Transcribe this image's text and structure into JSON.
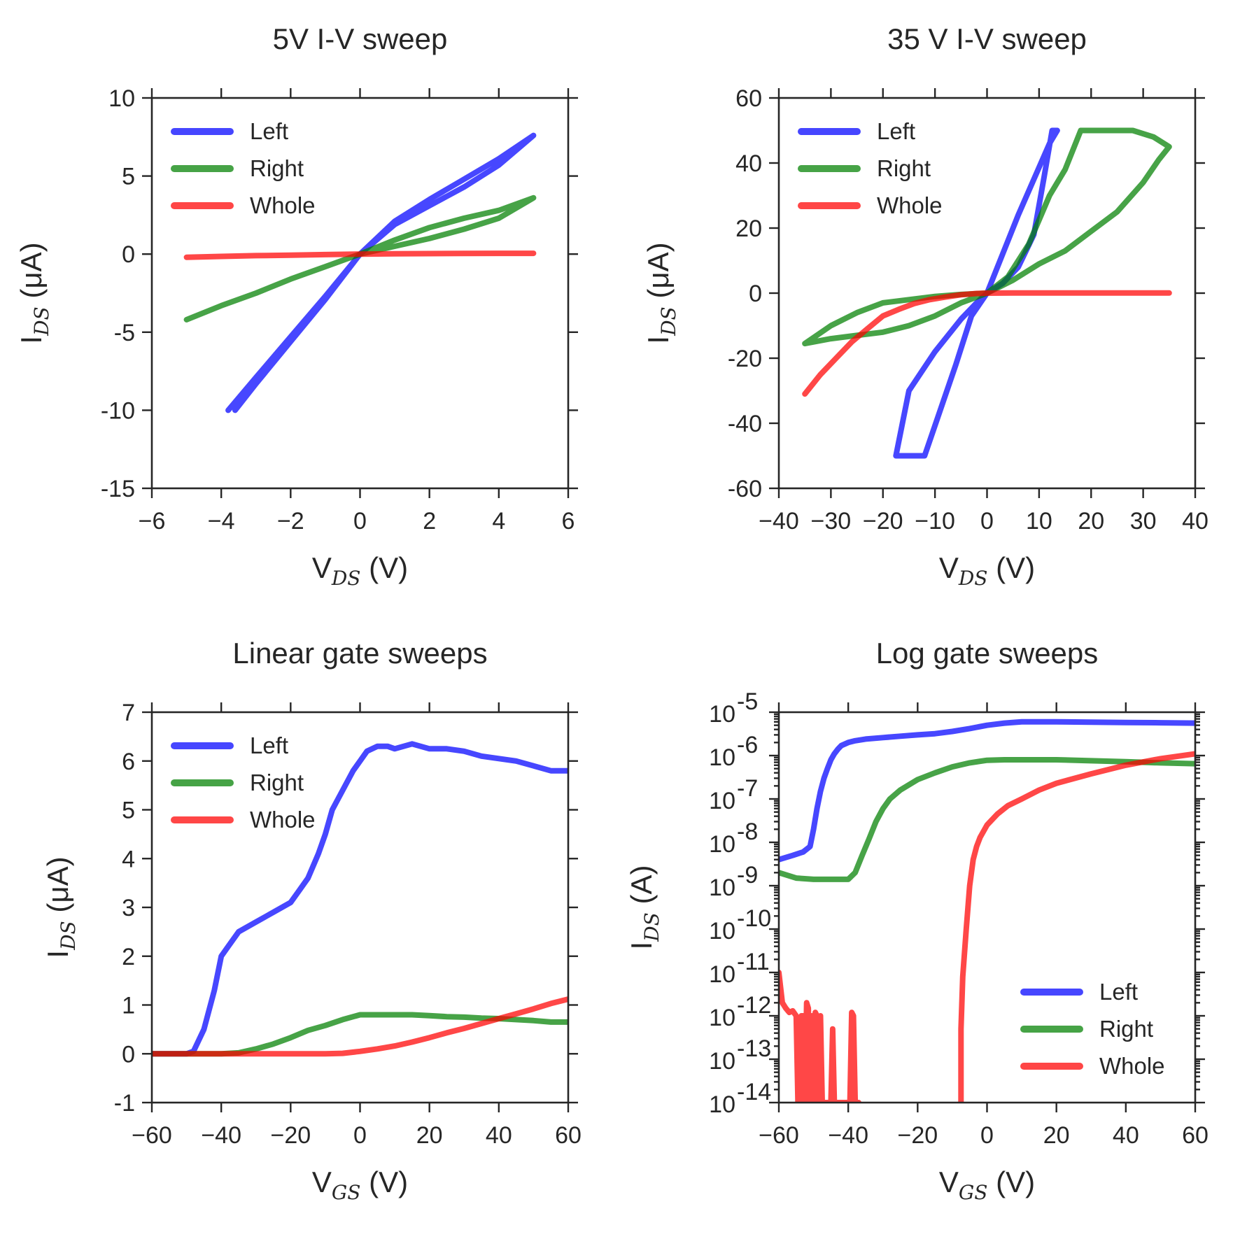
{
  "figure": {
    "legend_labels": [
      "Left",
      "Right",
      "Whole"
    ],
    "colors": {
      "Left": "#0000ff",
      "Right": "#008000",
      "Whole": "#ff0000"
    }
  },
  "chart_data": [
    {
      "id": "p1",
      "type": "line",
      "title": "5V I-V sweep",
      "xlabel": "V",
      "xlabel_sub": "DS",
      "xlabel_suffix": " (V)",
      "ylabel": "I",
      "ylabel_sub": "DS",
      "ylabel_suffix": " (μA)",
      "xlim": [
        -6,
        6
      ],
      "ylim": [
        -15,
        10
      ],
      "xticks": [
        -6,
        -4,
        -2,
        0,
        2,
        4,
        6
      ],
      "xtick_labels": [
        "−6",
        "−4",
        "−2",
        "0",
        "2",
        "4",
        "6"
      ],
      "yticks": [
        -15,
        -10,
        -5,
        0,
        5,
        10
      ],
      "ytick_labels": [
        "-15",
        "-10",
        "-5",
        "0",
        "5",
        "10"
      ],
      "legend_position": "top-left",
      "series": [
        {
          "name": "Left",
          "x": [
            -3.8,
            -3.0,
            -2.0,
            -1.0,
            0.0,
            1.0,
            2.0,
            3.0,
            4.0,
            5.0,
            4.0,
            3.0,
            2.0,
            1.0,
            0.0,
            -1.0,
            -2.0,
            -3.0,
            -3.6
          ],
          "y": [
            -10.0,
            -7.9,
            -5.3,
            -2.7,
            0.0,
            1.9,
            3.1,
            4.3,
            5.7,
            7.6,
            6.1,
            4.8,
            3.5,
            2.1,
            0.0,
            -2.9,
            -5.6,
            -8.3,
            -10.0
          ]
        },
        {
          "name": "Right",
          "x": [
            -5.0,
            -4.0,
            -3.0,
            -2.0,
            -1.0,
            0.0,
            1.0,
            2.0,
            3.0,
            4.0,
            5.0,
            4.0,
            3.0,
            2.0,
            1.0,
            0.0,
            -1.0,
            -2.0,
            -3.0,
            -4.0,
            -5.0
          ],
          "y": [
            -4.2,
            -3.3,
            -2.5,
            -1.6,
            -0.8,
            0.0,
            0.9,
            1.7,
            2.3,
            2.8,
            3.6,
            2.3,
            1.6,
            1.0,
            0.5,
            0.0,
            -0.8,
            -1.6,
            -2.5,
            -3.3,
            -4.2
          ]
        },
        {
          "name": "Whole",
          "x": [
            -5.0,
            -4.0,
            -3.0,
            -2.0,
            -1.0,
            0.0,
            1.0,
            2.0,
            3.0,
            4.0,
            5.0
          ],
          "y": [
            -0.2,
            -0.15,
            -0.1,
            -0.07,
            -0.03,
            0.0,
            0.02,
            0.03,
            0.04,
            0.05,
            0.05
          ]
        }
      ]
    },
    {
      "id": "p2",
      "type": "line",
      "title": "35 V I-V sweep",
      "xlabel": "V",
      "xlabel_sub": "DS",
      "xlabel_suffix": " (V)",
      "ylabel": "I",
      "ylabel_sub": "DS",
      "ylabel_suffix": " (μA)",
      "xlim": [
        -40,
        40
      ],
      "ylim": [
        -60,
        60
      ],
      "xticks": [
        -40,
        -30,
        -20,
        -10,
        0,
        10,
        20,
        30,
        40
      ],
      "xtick_labels": [
        "−40",
        "−30",
        "−20",
        "−10",
        "0",
        "10",
        "20",
        "30",
        "40"
      ],
      "yticks": [
        -60,
        -40,
        -20,
        0,
        20,
        40,
        60
      ],
      "ytick_labels": [
        "-60",
        "-40",
        "-20",
        "0",
        "20",
        "40",
        "60"
      ],
      "legend_position": "top-left",
      "series": [
        {
          "name": "Left",
          "x": [
            0,
            3,
            6,
            9,
            12,
            13.5,
            12.5,
            11,
            9,
            6,
            3,
            0,
            -3,
            -6,
            -9,
            -12,
            -12,
            -17.5,
            -15,
            -10,
            -5,
            -2,
            0
          ],
          "y": [
            0,
            12,
            24,
            35,
            46,
            50,
            50,
            36,
            18,
            8,
            3,
            0,
            -7,
            -22,
            -36,
            -50,
            -50,
            -50,
            -30,
            -18,
            -8,
            -3,
            0
          ]
        },
        {
          "name": "Right",
          "x": [
            0,
            4,
            8,
            12,
            15,
            18,
            22,
            28,
            32,
            35,
            33,
            30,
            25,
            20,
            15,
            10,
            5,
            0,
            -5,
            -10,
            -15,
            -20,
            -25,
            -30,
            -35,
            -30,
            -25,
            -20,
            -15,
            -10,
            -5,
            0
          ],
          "y": [
            0,
            5,
            15,
            30,
            38,
            50,
            50,
            50,
            48,
            45,
            41,
            34,
            25,
            19,
            13,
            9,
            4,
            0,
            -3,
            -7,
            -10,
            -12,
            -13,
            -14,
            -15.5,
            -10,
            -6,
            -3,
            -2,
            -1,
            -0.4,
            0
          ]
        },
        {
          "name": "Whole",
          "x": [
            -35,
            -32,
            -29,
            -26,
            -23,
            -20,
            -17,
            -14,
            -11,
            -8,
            -5,
            -2,
            0,
            5,
            10,
            20,
            30,
            35
          ],
          "y": [
            -31,
            -25,
            -20,
            -15,
            -11,
            -7,
            -5,
            -3.2,
            -2,
            -1.2,
            -0.5,
            -0.1,
            0,
            0.05,
            0.05,
            0.05,
            0.05,
            0.05
          ]
        }
      ]
    },
    {
      "id": "p3",
      "type": "line",
      "title": "Linear gate sweeps",
      "xlabel": "V",
      "xlabel_sub": "GS",
      "xlabel_suffix": " (V)",
      "ylabel": "I",
      "ylabel_sub": "DS",
      "ylabel_suffix": " (μA)",
      "xlim": [
        -60,
        60
      ],
      "ylim": [
        -1,
        7
      ],
      "xticks": [
        -60,
        -40,
        -20,
        0,
        20,
        40,
        60
      ],
      "xtick_labels": [
        "−60",
        "−40",
        "−20",
        "0",
        "20",
        "40",
        "60"
      ],
      "yticks": [
        -1,
        0,
        1,
        2,
        3,
        4,
        5,
        6,
        7
      ],
      "ytick_labels": [
        "-1",
        "0",
        "1",
        "2",
        "3",
        "4",
        "5",
        "6",
        "7"
      ],
      "legend_position": "top-left",
      "series": [
        {
          "name": "Left",
          "x": [
            -60,
            -50,
            -48,
            -45,
            -42,
            -40,
            -38,
            -35,
            -30,
            -25,
            -20,
            -18,
            -15,
            -12,
            -10,
            -8,
            -5,
            -2,
            0,
            2,
            5,
            8,
            10,
            15,
            20,
            25,
            30,
            35,
            40,
            45,
            50,
            55,
            58,
            60
          ],
          "y": [
            0,
            0,
            0.05,
            0.5,
            1.3,
            2.0,
            2.2,
            2.5,
            2.7,
            2.9,
            3.1,
            3.3,
            3.6,
            4.1,
            4.5,
            5.0,
            5.4,
            5.8,
            6.0,
            6.2,
            6.3,
            6.3,
            6.25,
            6.35,
            6.25,
            6.25,
            6.2,
            6.1,
            6.05,
            6.0,
            5.9,
            5.8,
            5.8,
            5.8
          ]
        },
        {
          "name": "Right",
          "x": [
            -60,
            -40,
            -35,
            -30,
            -25,
            -20,
            -15,
            -10,
            -5,
            0,
            5,
            10,
            15,
            20,
            25,
            30,
            35,
            40,
            45,
            50,
            55,
            60
          ],
          "y": [
            0,
            0,
            0.02,
            0.1,
            0.2,
            0.33,
            0.48,
            0.58,
            0.7,
            0.8,
            0.8,
            0.8,
            0.8,
            0.78,
            0.76,
            0.75,
            0.73,
            0.72,
            0.7,
            0.68,
            0.65,
            0.65
          ]
        },
        {
          "name": "Whole",
          "x": [
            -60,
            -40,
            -20,
            -10,
            -5,
            0,
            5,
            10,
            15,
            20,
            25,
            30,
            35,
            40,
            45,
            50,
            55,
            60
          ],
          "y": [
            0,
            0,
            0,
            0,
            0.01,
            0.05,
            0.1,
            0.16,
            0.24,
            0.33,
            0.43,
            0.52,
            0.62,
            0.72,
            0.82,
            0.92,
            1.03,
            1.12
          ]
        }
      ]
    },
    {
      "id": "p4",
      "type": "line",
      "title": "Log gate sweeps",
      "xlabel": "V",
      "xlabel_sub": "GS",
      "xlabel_suffix": " (V)",
      "ylabel": "I",
      "ylabel_sub": "DS",
      "ylabel_suffix": " (A)",
      "yscale": "log",
      "xlim": [
        -60,
        60
      ],
      "ylim": [
        1e-14,
        1e-05
      ],
      "xticks": [
        -60,
        -40,
        -20,
        0,
        20,
        40,
        60
      ],
      "xtick_labels": [
        "−60",
        "−40",
        "−20",
        "0",
        "20",
        "40",
        "60"
      ],
      "yticks_exp": [
        -14,
        -13,
        -12,
        -11,
        -10,
        -9,
        -8,
        -7,
        -6,
        -5
      ],
      "ytick_base": "10",
      "ytick_exponents": [
        "-14",
        "-13",
        "-12",
        "-11",
        "-10",
        "-9",
        "-8",
        "-7",
        "-6",
        "-5"
      ],
      "legend_position": "bottom-right",
      "series": [
        {
          "name": "Left",
          "x": [
            -60,
            -56,
            -53,
            -51,
            -50,
            -49,
            -48,
            -47,
            -46,
            -45,
            -44,
            -43,
            -42,
            -40,
            -38,
            -35,
            -30,
            -25,
            -20,
            -15,
            -10,
            -5,
            0,
            5,
            10,
            20,
            30,
            40,
            50,
            60
          ],
          "y": [
            4e-09,
            5e-09,
            6e-09,
            8e-09,
            2e-08,
            6e-08,
            1.5e-07,
            3e-07,
            5e-07,
            8e-07,
            1.1e-06,
            1.4e-06,
            1.7e-06,
            2e-06,
            2.2e-06,
            2.4e-06,
            2.6e-06,
            2.8e-06,
            3e-06,
            3.2e-06,
            3.6e-06,
            4.2e-06,
            5e-06,
            5.6e-06,
            6e-06,
            6e-06,
            5.9e-06,
            5.8e-06,
            5.7e-06,
            5.6e-06
          ]
        },
        {
          "name": "Right",
          "x": [
            -60,
            -55,
            -50,
            -45,
            -40,
            -38,
            -36,
            -34,
            -32,
            -30,
            -28,
            -25,
            -20,
            -15,
            -10,
            -5,
            0,
            5,
            10,
            20,
            30,
            40,
            50,
            60
          ],
          "y": [
            2e-09,
            1.5e-09,
            1.4e-09,
            1.4e-09,
            1.4e-09,
            2e-09,
            5e-09,
            1.2e-08,
            3e-08,
            6e-08,
            1e-07,
            1.6e-07,
            2.8e-07,
            4e-07,
            5.5e-07,
            6.8e-07,
            7.8e-07,
            8e-07,
            8e-07,
            8e-07,
            7.6e-07,
            7.2e-07,
            6.8e-07,
            6.5e-07
          ]
        },
        {
          "name": "Whole",
          "x": [
            -7.5,
            -7.5,
            -7,
            -6,
            -5,
            -4,
            -3,
            -2,
            0,
            3,
            6,
            10,
            15,
            20,
            30,
            40,
            50,
            60
          ],
          "y": [
            1e-14,
            5e-13,
            8e-12,
            1e-10,
            1e-09,
            4e-09,
            8e-09,
            1.3e-08,
            2.5e-08,
            4.5e-08,
            7e-08,
            1e-07,
            1.6e-07,
            2.3e-07,
            3.8e-07,
            6e-07,
            8.5e-07,
            1.1e-06
          ]
        },
        {
          "name": "Whole",
          "segments": [
            {
              "x": [
                -60,
                -59,
                -58,
                -57,
                -56,
                -55,
                -54.5,
                -54,
                -53.5,
                -53,
                -52.5,
                -52,
                -51.5,
                -51,
                -50.5,
                -50,
                -49.5,
                -49,
                -48.5,
                -48,
                -47.5,
                -47,
                -46.5,
                -46,
                -45.5,
                -45,
                -44.5,
                -44,
                -43.5,
                -43,
                -42.5,
                -42,
                -41.5,
                -41,
                -40.5,
                -40,
                -39.5,
                -39,
                -38.5,
                -38,
                -37.5,
                -37
              ],
              "y": [
                1e-11,
                2e-12,
                1.5e-12,
                1.2e-12,
                1.3e-12,
                1e-12,
                1e-14,
                1e-14,
                1e-12,
                1e-12,
                1e-14,
                2e-12,
                1.5e-12,
                1e-14,
                1e-12,
                1e-14,
                1.2e-12,
                1e-12,
                1e-14,
                1e-12,
                1e-14,
                1e-14,
                1e-14,
                1e-14,
                1e-14,
                1e-14,
                5e-13,
                1e-14,
                1e-14,
                1e-14,
                1e-14,
                1e-14,
                1e-14,
                1e-14,
                1e-14,
                1e-14,
                1e-14,
                1.2e-12,
                1e-12,
                1e-14,
                1e-14,
                1e-14
              ]
            }
          ]
        }
      ]
    }
  ]
}
